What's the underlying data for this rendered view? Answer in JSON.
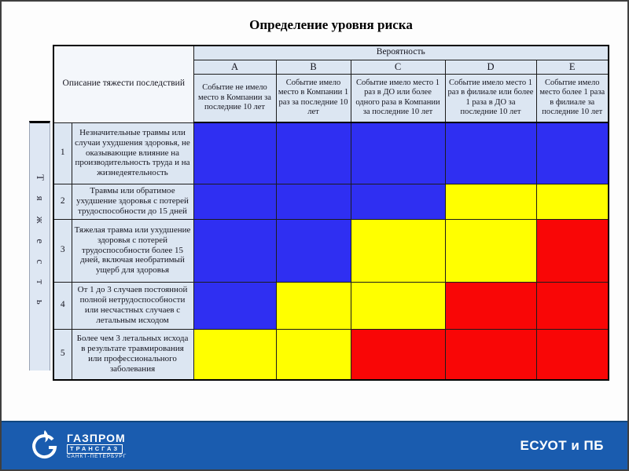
{
  "title": "Определение уровня риска",
  "table": {
    "severity_header": "Описание тяжести последствий",
    "probability_header": "Вероятность",
    "severity_axis_label": "Тяжесть",
    "columns": [
      {
        "letter": "A",
        "desc": "Событие не имело место в Компании за последние 10 лет"
      },
      {
        "letter": "B",
        "desc": "Событие имело место в Компании 1 раз за последние 10 лет"
      },
      {
        "letter": "C",
        "desc": "Событие имело место 1 раз в ДО или более одного раза в Компании за последние 10 лет"
      },
      {
        "letter": "D",
        "desc": "Событие имело место 1 раз в филиале или более 1 раза в ДО за последние 10 лет"
      },
      {
        "letter": "E",
        "desc": "Событие имело место более 1 раза в филиале за последние 10 лет"
      }
    ],
    "rows": [
      {
        "num": "1",
        "desc": "Незначительные травмы или случаи ухудшения здоровья, не оказывающие влияние на производительность труда и на жизнедеятельность",
        "cells": [
          "blue",
          "blue",
          "blue",
          "blue",
          "blue"
        ]
      },
      {
        "num": "2",
        "desc": "Травмы или обратимое ухудшение здоровья с потерей трудоспособности до 15 дней",
        "cells": [
          "blue",
          "blue",
          "blue",
          "yellow",
          "yellow"
        ]
      },
      {
        "num": "3",
        "desc": "Тяжелая травма или ухудшение здоровья с потерей трудоспособности более 15 дней, включая необратимый ущерб для здоровья",
        "cells": [
          "blue",
          "blue",
          "yellow",
          "yellow",
          "red"
        ]
      },
      {
        "num": "4",
        "desc": "От 1 до 3 случаев постоянной полной нетрудоспособности или несчастных случаев с летальным исходом",
        "cells": [
          "blue",
          "yellow",
          "yellow",
          "red",
          "red"
        ]
      },
      {
        "num": "5",
        "desc": "Более чем 3 летальных исхода в результате травмирования или профессионального заболевания",
        "cells": [
          "yellow",
          "yellow",
          "red",
          "red",
          "red"
        ]
      }
    ]
  },
  "colors": {
    "blue": "#2f2ff2",
    "yellow": "#ffff00",
    "red": "#f90606",
    "header_bg": "#dce6f2",
    "banner_blue": "#1a5caf"
  },
  "footer": {
    "label": "ЕСУОТ и ПБ",
    "logo_line1": "ГАЗПРОМ",
    "logo_line2": "ТРАНСГАЗ",
    "logo_line3": "САНКТ-ПЕТЕРБУРГ"
  }
}
